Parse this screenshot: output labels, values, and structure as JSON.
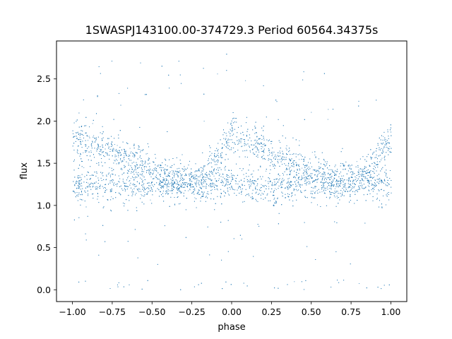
{
  "chart_data": {
    "type": "scatter",
    "title": "1SWASPJ143100.00-374729.3 Period 60564.34375s",
    "xlabel": "phase",
    "ylabel": "flux",
    "xlim": [
      -1.1,
      1.1
    ],
    "ylim": [
      -0.14,
      2.95
    ],
    "xticks": [
      -1.0,
      -0.75,
      -0.5,
      -0.25,
      0.0,
      0.25,
      0.5,
      0.75,
      1.0
    ],
    "xtick_labels": [
      "−1.00",
      "−0.75",
      "−0.50",
      "−0.25",
      "0.00",
      "0.25",
      "0.50",
      "0.75",
      "1.00"
    ],
    "yticks": [
      0.0,
      0.5,
      1.0,
      1.5,
      2.0,
      2.5
    ],
    "ytick_labels": [
      "0.0",
      "0.5",
      "1.0",
      "1.5",
      "2.0",
      "2.5"
    ],
    "grid": false,
    "legend": "none",
    "marker_color": "#1f77b4",
    "series": [
      {
        "x": [
          -1.0,
          -0.9,
          -0.8,
          -0.7,
          -0.6,
          -0.5,
          -0.4,
          -0.3,
          -0.2,
          -0.1,
          0.0,
          0.1,
          0.2,
          0.3,
          0.4,
          0.5,
          0.6,
          0.7,
          0.8,
          0.9,
          1.0
        ],
        "upper_band_y": [
          1.8,
          1.75,
          1.7,
          1.62,
          1.52,
          1.43,
          1.36,
          1.3,
          1.3,
          1.5,
          1.85,
          1.78,
          1.68,
          1.58,
          1.48,
          1.4,
          1.33,
          1.28,
          1.35,
          1.5,
          1.82
        ],
        "lower_band_y": [
          1.25,
          1.24,
          1.24,
          1.24,
          1.24,
          1.24,
          1.25,
          1.26,
          1.28,
          1.26,
          1.25,
          1.24,
          1.24,
          1.24,
          1.24,
          1.24,
          1.25,
          1.26,
          1.28,
          1.27,
          1.25
        ]
      }
    ]
  }
}
